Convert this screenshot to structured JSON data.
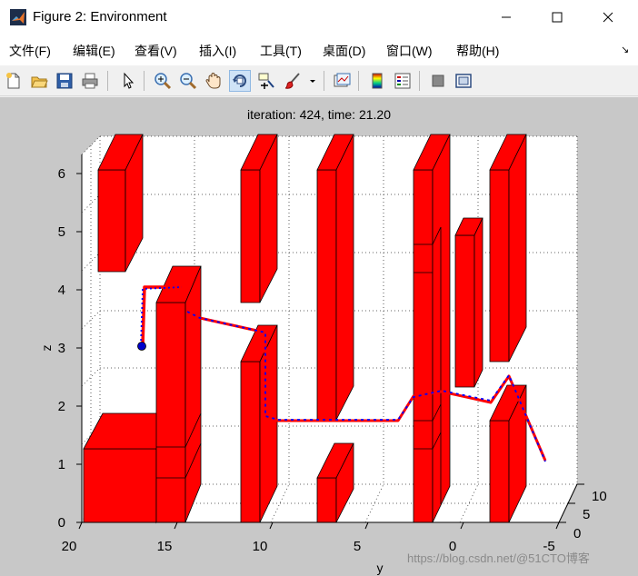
{
  "window": {
    "title": "Figure 2: Environment",
    "icon": "matlab-icon"
  },
  "menu": {
    "items": [
      "文件(F)",
      "编辑(E)",
      "查看(V)",
      "插入(I)",
      "工具(T)",
      "桌面(D)",
      "窗口(W)",
      "帮助(H)"
    ]
  },
  "toolbar": {
    "icons": [
      "new-figure-icon",
      "open-file-icon",
      "save-icon",
      "print-icon",
      "arrow-pointer-icon",
      "zoom-in-icon",
      "zoom-out-icon",
      "pan-hand-icon",
      "rotate-3d-icon",
      "data-cursor-icon",
      "brush-icon",
      "dropdown-arrow-icon",
      "link-plot-icon",
      "colorbar-icon",
      "legend-icon",
      "hide-plot-tools-icon",
      "show-plot-tools-icon"
    ],
    "active": "rotate-3d-icon"
  },
  "plot": {
    "title": "iteration: 424, time: 21.20",
    "xlabel": "y",
    "zlabel": "z",
    "y_ticks": [
      "20",
      "15",
      "10",
      "5",
      "0",
      "-5"
    ],
    "z_ticks": [
      "0",
      "1",
      "2",
      "3",
      "4",
      "5",
      "6"
    ],
    "depth_ticks": [
      "0",
      "5",
      "10"
    ],
    "obstacle_color": "#ff0000",
    "path_colors": [
      "#ff0000",
      "#0000ff"
    ]
  },
  "watermark": "https://blog.csdn.net/@51CTO博客"
}
